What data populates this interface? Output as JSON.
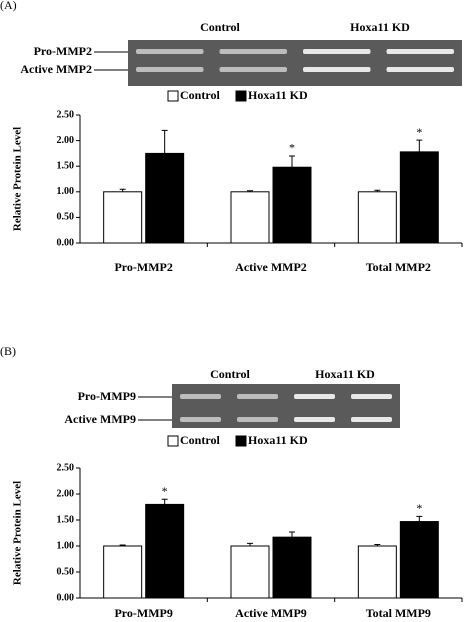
{
  "chart_data": [
    {
      "type": "bar",
      "panel": "(A)",
      "gel": {
        "groups": [
          "Control",
          "Hoxa11 KD"
        ],
        "bands": [
          "Pro-MMP2",
          "Active MMP2"
        ]
      },
      "ylabel": "Relative Protein Level",
      "categories": [
        "Pro-MMP2",
        "Active MMP2",
        "Total MMP2"
      ],
      "series": [
        {
          "name": "Control",
          "color": "#ffffff",
          "values": [
            1.0,
            1.0,
            1.0
          ],
          "errors": [
            0.05,
            0.02,
            0.03
          ]
        },
        {
          "name": "Hoxa11 KD",
          "color": "#000000",
          "values": [
            1.75,
            1.48,
            1.78
          ],
          "errors": [
            0.45,
            0.22,
            0.23
          ],
          "marks": [
            null,
            "*",
            "*"
          ]
        }
      ],
      "ylim": [
        0,
        2.5
      ],
      "yticks": [
        {
          "value": 0,
          "label": "0.00"
        },
        {
          "value": 0.5,
          "label": "0.50"
        },
        {
          "value": 1,
          "label": "1.00"
        },
        {
          "value": 1.5,
          "label": "1.50"
        },
        {
          "value": 2,
          "label": "2.00"
        },
        {
          "value": 2.5,
          "label": "2.50"
        }
      ]
    },
    {
      "type": "bar",
      "panel": "(B)",
      "gel": {
        "groups": [
          "Control",
          "Hoxa11 KD"
        ],
        "bands": [
          "Pro-MMP9",
          "Active MMP9"
        ]
      },
      "ylabel": "Relative Protein Level",
      "categories": [
        "Pro-MMP9",
        "Active MMP9",
        "Total MMP9"
      ],
      "series": [
        {
          "name": "Control",
          "color": "#ffffff",
          "values": [
            1.0,
            1.0,
            1.0
          ],
          "errors": [
            0.02,
            0.05,
            0.03
          ]
        },
        {
          "name": "Hoxa11 KD",
          "color": "#000000",
          "values": [
            1.8,
            1.17,
            1.47
          ],
          "errors": [
            0.1,
            0.1,
            0.1
          ],
          "marks": [
            "*",
            null,
            "*"
          ]
        }
      ],
      "ylim": [
        0,
        2.5
      ],
      "yticks": [
        {
          "value": 0,
          "label": "0.00"
        },
        {
          "value": 0.5,
          "label": "0.50"
        },
        {
          "value": 1,
          "label": "1.00"
        },
        {
          "value": 1.5,
          "label": "1.50"
        },
        {
          "value": 2,
          "label": "2.00"
        },
        {
          "value": 2.5,
          "label": "2.50"
        }
      ]
    }
  ]
}
